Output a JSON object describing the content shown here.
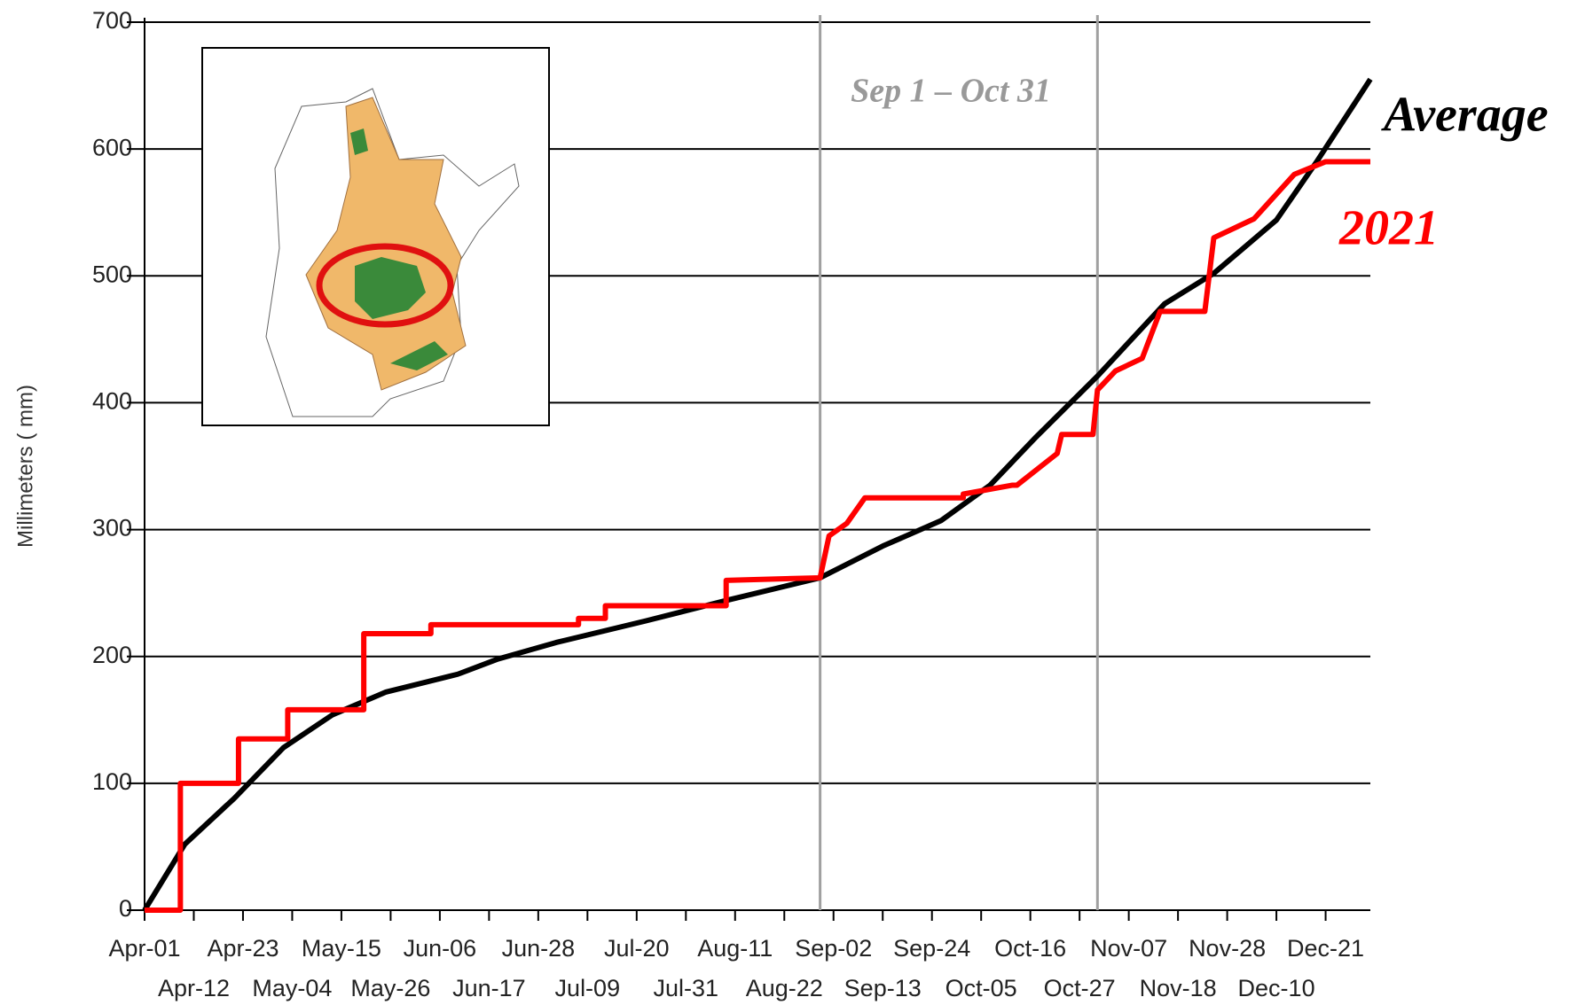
{
  "chart_data": {
    "type": "line",
    "y_label": "Millimeters ( mm)",
    "annotation": "Sep 1 – Oct 31",
    "vlines": [
      151,
      213
    ],
    "xlim": [
      0,
      274
    ],
    "ylim": [
      0,
      700
    ],
    "yticks": [
      0,
      100,
      200,
      300,
      400,
      500,
      600,
      700
    ],
    "xticks": [
      {
        "value": 0,
        "label": "Apr-01"
      },
      {
        "value": 11,
        "label": "Apr-12"
      },
      {
        "value": 22,
        "label": "Apr-23"
      },
      {
        "value": 33,
        "label": "May-04"
      },
      {
        "value": 44,
        "label": "May-15"
      },
      {
        "value": 55,
        "label": "May-26"
      },
      {
        "value": 66,
        "label": "Jun-06"
      },
      {
        "value": 77,
        "label": "Jun-17"
      },
      {
        "value": 88,
        "label": "Jun-28"
      },
      {
        "value": 99,
        "label": "Jul-09"
      },
      {
        "value": 110,
        "label": "Jul-20"
      },
      {
        "value": 121,
        "label": "Jul-31"
      },
      {
        "value": 132,
        "label": "Aug-11"
      },
      {
        "value": 143,
        "label": "Aug-22"
      },
      {
        "value": 154,
        "label": "Sep-02"
      },
      {
        "value": 165,
        "label": "Sep-13"
      },
      {
        "value": 176,
        "label": "Sep-24"
      },
      {
        "value": 187,
        "label": "Oct-05"
      },
      {
        "value": 198,
        "label": "Oct-16"
      },
      {
        "value": 209,
        "label": "Oct-27"
      },
      {
        "value": 220,
        "label": "Nov-07"
      },
      {
        "value": 231,
        "label": "Nov-18"
      },
      {
        "value": 242,
        "label": "Nov-28"
      },
      {
        "value": 253,
        "label": "Dec-10"
      },
      {
        "value": 264,
        "label": "Dec-21"
      }
    ],
    "grid": true,
    "series": [
      {
        "name": "Average",
        "color": "#000000",
        "x": [
          0,
          9,
          20,
          31,
          42,
          54,
          70,
          79,
          92,
          112,
          131,
          151,
          165,
          178,
          189,
          199,
          213,
          228,
          239,
          253,
          262,
          274
        ],
        "values": [
          0,
          52,
          88,
          128,
          154,
          172,
          186,
          198,
          211,
          228,
          245,
          262,
          287,
          307,
          335,
          372,
          421,
          478,
          502,
          544,
          590,
          655
        ]
      },
      {
        "name": "2021",
        "color": "#ff0000",
        "x": [
          0,
          8,
          8,
          21,
          21,
          32,
          32,
          49,
          49,
          64,
          64,
          97,
          97,
          103,
          103,
          130,
          130,
          151,
          153,
          157,
          161,
          183,
          183,
          194,
          195,
          204,
          205,
          212,
          213,
          217,
          223,
          227,
          237,
          239,
          248,
          257,
          264,
          274
        ],
        "values": [
          0,
          0,
          100,
          100,
          135,
          135,
          158,
          158,
          218,
          218,
          225,
          225,
          230,
          230,
          240,
          240,
          260,
          262,
          295,
          305,
          325,
          325,
          328,
          335,
          335,
          360,
          375,
          375,
          410,
          425,
          435,
          472,
          472,
          530,
          545,
          580,
          590,
          590
        ]
      }
    ]
  }
}
